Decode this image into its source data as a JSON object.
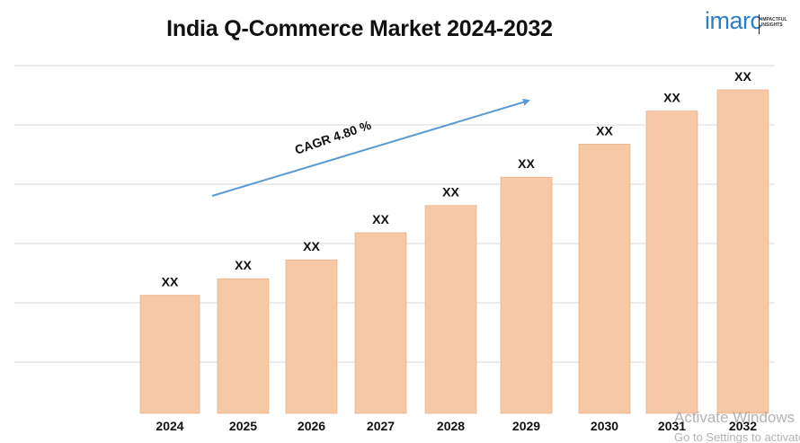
{
  "chart_data": {
    "type": "bar",
    "title": "India Q-Commerce Market 2024-2032",
    "categories": [
      "2024",
      "2025",
      "2026",
      "2027",
      "2028",
      "2029",
      "2030",
      "2031",
      "2032"
    ],
    "values": [
      1.0,
      1.14,
      1.3,
      1.53,
      1.76,
      2.0,
      2.28,
      2.56,
      2.74
    ],
    "value_note": "relative bar heights; actual values not shown",
    "data_labels": [
      "XX",
      "XX",
      "XX",
      "XX",
      "XX",
      "XX",
      "XX",
      "XX",
      "XX"
    ],
    "ylim": [
      0,
      2.93
    ],
    "grid": true,
    "bar_color": "#f7c8a5",
    "xlabel": "",
    "ylabel": "",
    "annotation": {
      "text": "CAGR 4.80 %",
      "arrow_color": "#5b9bd5"
    }
  },
  "logo": {
    "brand": "imarc",
    "tagline_line1": "IMPACTFUL",
    "tagline_line2": "INSIGHTS",
    "color": "#2a7fc7"
  },
  "watermark": {
    "line1": "Activate Windows",
    "line2": "Go to Settings to activate Windows."
  }
}
